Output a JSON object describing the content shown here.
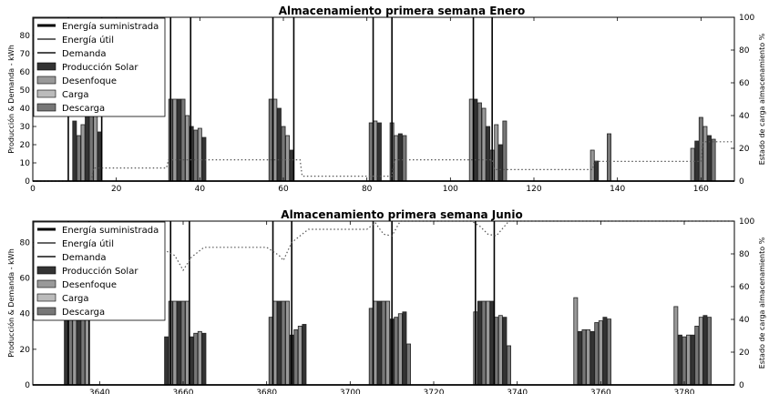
{
  "chart_data": [
    {
      "type": "bar",
      "title": "Almacenamiento primera semana Enero",
      "xlabel": "",
      "ylabel": "Producción & Demanda - kWh",
      "y2label": "Estado de carga almacenamiento %",
      "xlim": [
        0,
        168
      ],
      "ylim": [
        0,
        90
      ],
      "y2lim": [
        0,
        100
      ],
      "x_ticks": [
        0,
        20,
        40,
        60,
        80,
        100,
        120,
        140,
        160
      ],
      "y_ticks": [
        0,
        10,
        20,
        30,
        40,
        50,
        60,
        70,
        80
      ],
      "y2_ticks": [
        0,
        20,
        40,
        60,
        80,
        100
      ],
      "legend": {
        "placement": "upper-left",
        "entries": [
          "Energía suministrada",
          "Energía útil",
          "Demanda",
          "Producción Solar",
          "Desenfoque",
          "Carga",
          "Descarga"
        ]
      },
      "colors": {
        "Energía suministrada": "#000000",
        "Energía útil": "#666666",
        "Demanda": "#111111",
        "Producción Solar": "#333333",
        "Desenfoque": "#999999",
        "Carga": "#bbbbbb",
        "Descarga": "#777777",
        "Estado de carga": "#555555"
      },
      "series": [
        {
          "name": "Producción Solar",
          "x": [
            10,
            11,
            12,
            13,
            14,
            15,
            16,
            33,
            34,
            35,
            36,
            37,
            38,
            39,
            40,
            41,
            57,
            58,
            59,
            60,
            61,
            62,
            81,
            82,
            83,
            86,
            87,
            88,
            89,
            105,
            106,
            107,
            108,
            109,
            110,
            111,
            112,
            113,
            134,
            135,
            138,
            158,
            159,
            160,
            161,
            162,
            163
          ],
          "values": [
            33,
            25,
            31,
            39,
            38,
            36,
            27,
            45,
            45,
            45,
            45,
            36,
            30,
            28,
            29,
            24,
            45,
            45,
            40,
            30,
            25,
            17,
            32,
            33,
            32,
            32,
            25,
            26,
            25,
            45,
            45,
            43,
            40,
            30,
            17,
            31,
            20,
            33,
            17,
            11,
            26,
            18,
            22,
            35,
            30,
            25,
            23
          ]
        },
        {
          "name": "Estado de carga",
          "x": [
            0,
            14,
            14.5,
            32,
            32.5,
            64,
            64.5,
            86,
            86.5,
            110,
            110.5,
            134,
            134.5,
            160,
            160.5,
            168
          ],
          "values": [
            0,
            0,
            8,
            8,
            13,
            13,
            3,
            3,
            13,
            13,
            7,
            7,
            12,
            12,
            24,
            24
          ]
        },
        {
          "name": "Energía suministrada",
          "x": [
            8.5,
            16.5,
            33,
            37.8,
            57.5,
            62.5,
            81.5,
            86,
            105.5,
            110
          ],
          "values": [
            90,
            90,
            90,
            90,
            90,
            90,
            90,
            90,
            90,
            90
          ]
        }
      ]
    },
    {
      "type": "bar",
      "title": "Almacenamiento primera semana Junio",
      "xlabel": "",
      "ylabel": "Producción & Demanda - kWh",
      "y2label": "Estado de carga almacenamiento %",
      "xlim": [
        3624,
        3792
      ],
      "ylim": [
        0,
        92
      ],
      "y2lim": [
        0,
        100
      ],
      "x_ticks": [
        3640,
        3660,
        3680,
        3700,
        3720,
        3740,
        3760,
        3780
      ],
      "y_ticks": [
        0,
        20,
        40,
        60,
        80
      ],
      "y2_ticks": [
        0,
        20,
        40,
        60,
        80,
        100
      ],
      "legend": {
        "placement": "upper-left",
        "entries": [
          "Energía suministrada",
          "Energía útil",
          "Demanda",
          "Producción Solar",
          "Desenfoque",
          "Carga",
          "Descarga"
        ]
      },
      "series": [
        {
          "name": "Producción Solar",
          "x": [
            3632,
            3633,
            3634,
            3635,
            3636,
            3637,
            3656,
            3657,
            3658,
            3659,
            3660,
            3661,
            3662,
            3663,
            3664,
            3665,
            3681,
            3682,
            3683,
            3684,
            3685,
            3686,
            3687,
            3688,
            3689,
            3705,
            3706,
            3707,
            3708,
            3709,
            3710,
            3711,
            3712,
            3713,
            3714,
            3730,
            3731,
            3732,
            3733,
            3734,
            3735,
            3736,
            3737,
            3738,
            3754,
            3755,
            3756,
            3757,
            3758,
            3759,
            3760,
            3761,
            3762,
            3778,
            3779,
            3780,
            3781,
            3782,
            3783,
            3784,
            3785,
            3786
          ],
          "values": [
            40,
            47,
            47,
            47,
            47,
            40,
            27,
            47,
            47,
            47,
            47,
            47,
            27,
            29,
            30,
            29,
            38,
            47,
            47,
            47,
            47,
            28,
            31,
            33,
            34,
            43,
            47,
            47,
            47,
            47,
            37,
            38,
            40,
            41,
            23,
            41,
            47,
            47,
            47,
            47,
            38,
            39,
            38,
            22,
            49,
            30,
            31,
            31,
            30,
            35,
            36,
            38,
            37,
            44,
            28,
            27,
            28,
            28,
            33,
            38,
            39,
            38
          ]
        },
        {
          "name": "Estado de carga",
          "x": [
            3624,
            3642,
            3648,
            3655,
            3658,
            3660,
            3662,
            3665,
            3680,
            3683,
            3684,
            3686,
            3690,
            3704,
            3706,
            3708,
            3710,
            3712,
            3729,
            3731,
            3733,
            3735,
            3738,
            3792
          ],
          "values": [
            84,
            84,
            84,
            83,
            79,
            70,
            78,
            84,
            84,
            79,
            76,
            87,
            95,
            95,
            99,
            92,
            91,
            100,
            100,
            97,
            92,
            91,
            100,
            100
          ]
        },
        {
          "name": "Energía suministrada",
          "x": [
            3632.5,
            3637.5,
            3657,
            3661.5,
            3681.5,
            3686,
            3705.5,
            3710,
            3730,
            3734.5
          ],
          "values": [
            92,
            92,
            92,
            92,
            92,
            92,
            92,
            92,
            92,
            92
          ]
        }
      ]
    }
  ]
}
